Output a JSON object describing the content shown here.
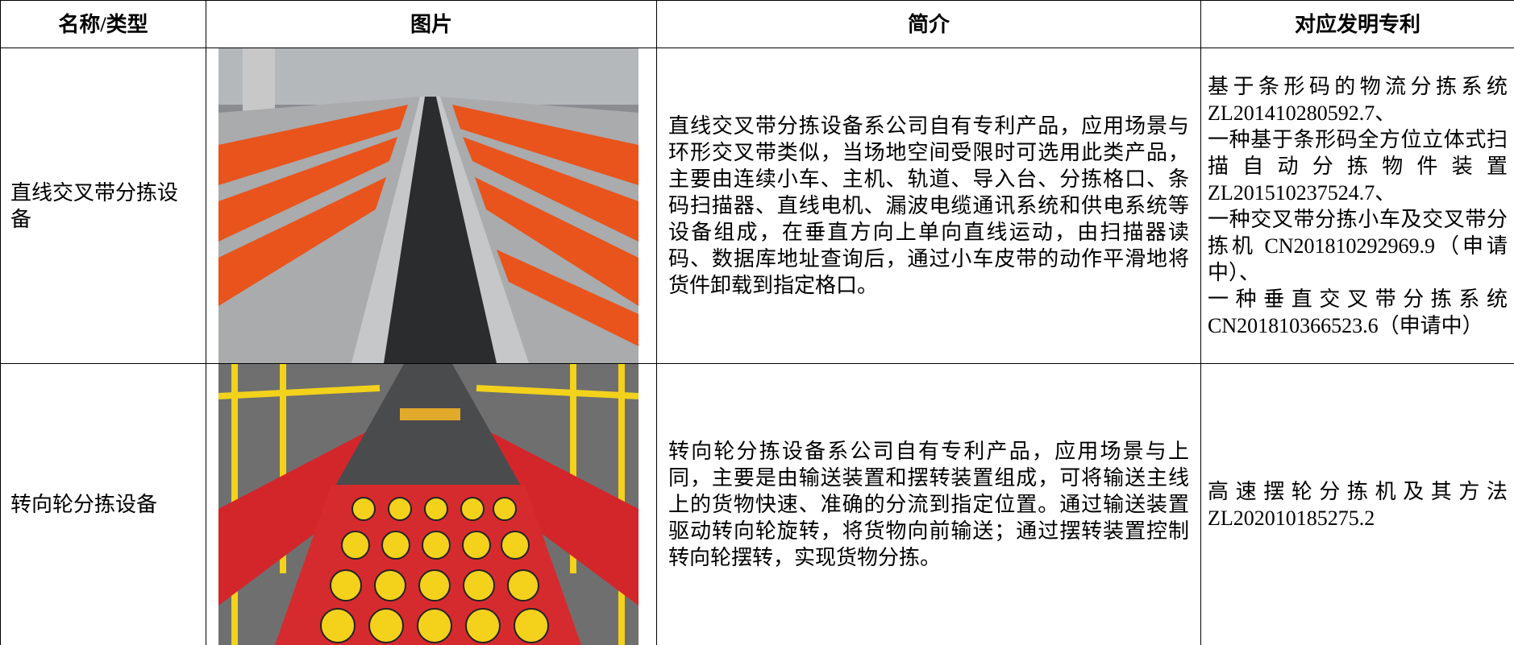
{
  "table": {
    "headers": [
      "名称/类型",
      "图片",
      "简介",
      "对应发明专利"
    ],
    "rows": [
      {
        "name": "直线交叉带分拣设备",
        "description": "直线交叉带分拣设备系公司自有专利产品，应用场景与环形交叉带类似，当场地空间受限时可选用此类产品，主要由连续小车、主机、轨道、导入台、分拣格口、条码扫描器、直线电机、漏波电缆通讯系统和供电系统等设备组成，在垂直方向上单向直线运动，由扫描器读码、数据库地址查询后，通过小车皮带的动作平滑地将货件卸载到指定格口。",
        "patents": [
          "基于条形码的物流分拣系统 ZL201410280592.7、",
          "一种基于条形码全方位立体式扫描自动分拣物件装置 ZL201510237524.7、",
          "一种交叉带分拣小车及交叉带分拣机 CN201810292969.9（申请中）、",
          "一种垂直交叉带分拣系统 CN201810366523.6（申请中）"
        ]
      },
      {
        "name": "转向轮分拣设备",
        "description": "转向轮分拣设备系公司自有专利产品，应用场景与上同，主要是由输送装置和摆转装置组成，可将输送主线上的货物快速、准确的分流到指定位置。通过输送装置驱动转向轮旋转，将货物向前输送；通过摆转装置控制转向轮摆转，实现货物分拣。",
        "patents": [
          "高速摆轮分拣机及其方法 ZL202010185275.2"
        ]
      }
    ]
  }
}
